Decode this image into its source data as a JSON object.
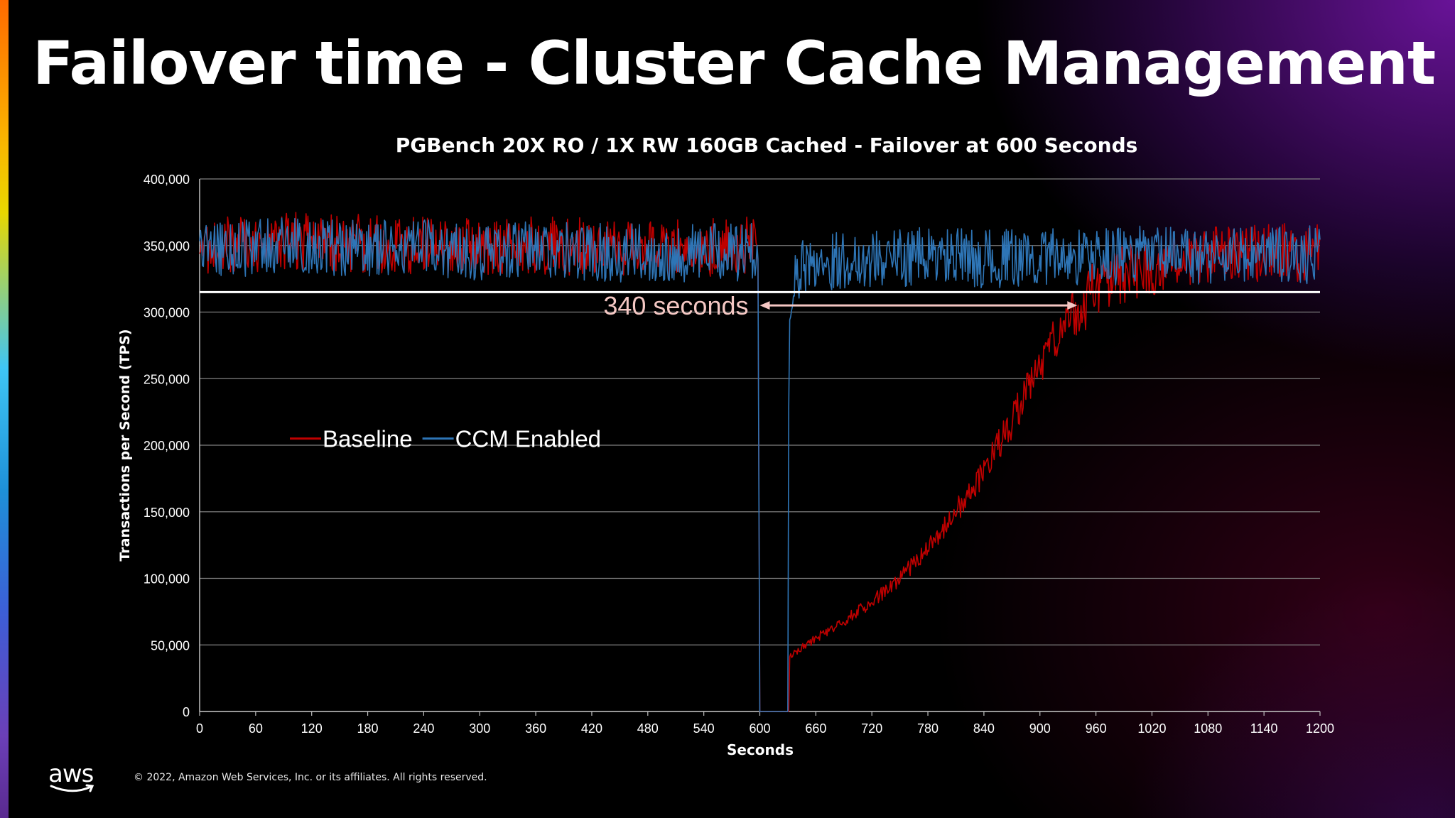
{
  "slide": {
    "title": "Failover time - Cluster Cache Management",
    "copyright": "© 2022, Amazon Web Services, Inc. or its affiliates. All rights reserved.",
    "logo_text": "aws"
  },
  "colors": {
    "baseline": "#c00000",
    "ccm": "#2e75b6",
    "threshold_line": "#ffffff",
    "annotation": "#f4c7c3",
    "grid": "#7f7f7f"
  },
  "chart_data": {
    "type": "line",
    "title": "PGBench 20X RO / 1X RW 160GB Cached - Failover at 600 Seconds",
    "xlabel": "Seconds",
    "ylabel": "Transactions per Second (TPS)",
    "xlim": [
      0,
      1200
    ],
    "ylim": [
      0,
      400000
    ],
    "x_ticks": [
      0,
      60,
      120,
      180,
      240,
      300,
      360,
      420,
      480,
      540,
      600,
      660,
      720,
      780,
      840,
      900,
      960,
      1020,
      1080,
      1140,
      1200
    ],
    "y_ticks": [
      0,
      50000,
      100000,
      150000,
      200000,
      250000,
      300000,
      350000,
      400000
    ],
    "y_tick_labels": [
      "0",
      "50,000",
      "100,000",
      "150,000",
      "200,000",
      "250,000",
      "300,000",
      "350,000",
      "400,000"
    ],
    "legend_position": "left-middle",
    "grid": true,
    "series": [
      {
        "name": "Baseline",
        "x": [
          0,
          60,
          120,
          180,
          240,
          300,
          360,
          420,
          480,
          540,
          598,
          600,
          630,
          632,
          660,
          690,
          720,
          750,
          780,
          810,
          840,
          870,
          900,
          930,
          945,
          960,
          990,
          1020,
          1080,
          1140,
          1200
        ],
        "values": [
          350000,
          352000,
          354000,
          351000,
          350000,
          348000,
          350000,
          349000,
          347000,
          348000,
          350000,
          0,
          0,
          42000,
          55000,
          68000,
          82000,
          100000,
          122000,
          150000,
          180000,
          218000,
          260000,
          295000,
          305000,
          318000,
          328000,
          335000,
          342000,
          345000,
          345000
        ]
      },
      {
        "name": "CCM Enabled",
        "x": [
          0,
          60,
          120,
          180,
          240,
          300,
          360,
          420,
          480,
          540,
          598,
          600,
          628,
          632,
          640,
          660,
          720,
          780,
          840,
          900,
          960,
          1020,
          1080,
          1140,
          1200
        ],
        "values": [
          348000,
          349000,
          350000,
          347000,
          348000,
          346000,
          347000,
          345000,
          344000,
          345000,
          345000,
          0,
          0,
          300000,
          330000,
          338000,
          340000,
          342000,
          340000,
          341000,
          342000,
          343000,
          342000,
          343000,
          343000
        ]
      }
    ],
    "annotations": [
      {
        "text": "340 seconds",
        "x_start": 600,
        "x_end": 940,
        "y": 305000
      }
    ],
    "reference_lines": [
      {
        "y": 315000
      }
    ]
  }
}
